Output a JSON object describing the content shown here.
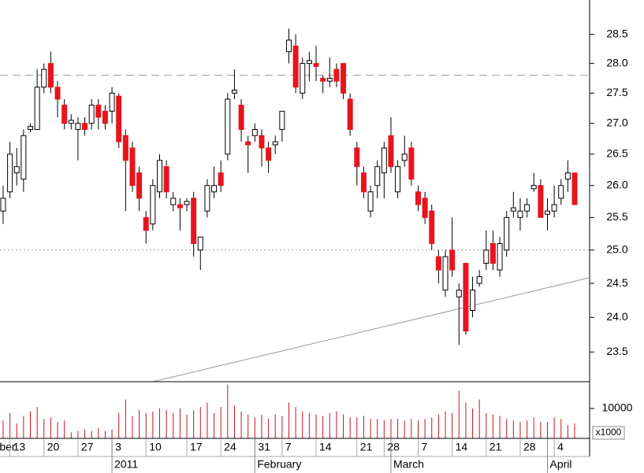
{
  "chart_data": {
    "type": "candlestick",
    "log_scale": true,
    "up_color": "#ffffff",
    "down_color": "#e8141c",
    "volume_color": "#c8141c",
    "open": [
      25.6,
      25.9,
      26.2,
      26.1,
      26.9,
      26.9,
      27.6,
      28.0,
      27.6,
      27.3,
      27.0,
      26.9,
      27.0,
      27.0,
      27.3,
      27.2,
      27.2,
      27.45,
      26.8,
      26.6,
      26.2,
      25.5,
      25.4,
      25.9,
      26.3,
      25.7,
      25.7,
      25.7,
      25.8,
      25.0,
      25.6,
      25.9,
      26.2,
      26.5,
      27.5,
      27.3,
      26.7,
      26.8,
      26.8,
      26.6,
      26.65,
      26.9,
      28.2,
      28.3,
      27.5,
      28.0,
      28.0,
      27.75,
      27.7,
      27.9,
      28.0,
      27.4,
      26.6,
      26.2,
      25.6,
      26.0,
      26.2,
      26.8,
      25.9,
      26.4,
      26.6,
      25.9,
      25.8,
      25.6,
      24.9,
      24.4,
      25.0,
      24.3,
      24.8,
      24.1,
      24.5,
      24.8,
      25.1,
      24.7,
      25.0,
      25.6,
      25.5,
      25.6,
      25.95,
      26.0,
      25.55,
      25.6,
      25.8,
      26.1,
      26.2
    ],
    "high": [
      26.0,
      26.7,
      26.6,
      26.9,
      27.0,
      27.9,
      28.0,
      28.2,
      27.7,
      27.4,
      27.15,
      27.1,
      27.1,
      27.4,
      27.4,
      27.3,
      27.6,
      27.5,
      26.9,
      26.7,
      26.3,
      25.6,
      26.1,
      26.5,
      26.4,
      25.9,
      25.8,
      25.8,
      25.9,
      25.2,
      26.1,
      26.3,
      26.4,
      27.5,
      27.9,
      27.4,
      26.8,
      27.0,
      26.9,
      26.7,
      26.8,
      27.2,
      28.6,
      28.5,
      28.1,
      28.2,
      28.3,
      27.8,
      28.1,
      28.0,
      28.0,
      27.5,
      26.7,
      26.3,
      26.0,
      26.4,
      26.7,
      27.1,
      26.4,
      26.8,
      26.7,
      26.0,
      25.9,
      25.7,
      25.0,
      25.0,
      25.5,
      24.5,
      24.8,
      24.6,
      24.7,
      25.3,
      25.3,
      25.2,
      25.6,
      25.9,
      25.8,
      25.8,
      26.2,
      26.1,
      25.8,
      26.0,
      26.1,
      26.4,
      26.2
    ],
    "low": [
      25.4,
      25.8,
      26.0,
      25.9,
      26.85,
      26.9,
      27.5,
      27.5,
      27.1,
      26.9,
      26.9,
      26.4,
      26.8,
      26.9,
      26.9,
      26.9,
      27.0,
      26.6,
      25.6,
      25.9,
      25.6,
      25.1,
      25.3,
      25.8,
      25.8,
      25.6,
      25.3,
      25.6,
      24.9,
      24.7,
      25.5,
      25.8,
      25.9,
      26.4,
      27.4,
      26.7,
      26.2,
      26.7,
      26.3,
      26.2,
      26.5,
      26.7,
      28.0,
      27.5,
      27.4,
      27.7,
      27.7,
      27.5,
      27.6,
      27.6,
      27.4,
      26.8,
      26.0,
      25.8,
      25.5,
      25.8,
      25.8,
      26.2,
      25.8,
      26.3,
      26.0,
      25.6,
      25.4,
      25.0,
      24.5,
      24.3,
      24.6,
      23.6,
      23.75,
      24.0,
      24.45,
      24.7,
      24.7,
      24.6,
      24.9,
      25.5,
      25.3,
      25.5,
      25.9,
      25.5,
      25.3,
      25.5,
      25.7,
      25.9,
      25.7
    ],
    "close": [
      25.8,
      26.5,
      26.3,
      26.8,
      26.95,
      27.6,
      27.9,
      27.6,
      27.4,
      27.0,
      27.05,
      27.0,
      26.9,
      27.3,
      27.1,
      27.0,
      27.5,
      26.7,
      26.4,
      26.0,
      25.8,
      25.3,
      26.0,
      26.4,
      25.9,
      25.8,
      25.65,
      25.75,
      25.1,
      25.2,
      26.0,
      26.0,
      26.0,
      27.4,
      27.55,
      26.9,
      26.65,
      26.9,
      26.6,
      26.4,
      26.7,
      27.2,
      28.4,
      27.6,
      28.0,
      28.05,
      27.95,
      27.7,
      27.75,
      27.7,
      27.5,
      26.9,
      26.3,
      25.9,
      25.9,
      26.3,
      26.6,
      26.3,
      26.3,
      26.5,
      26.1,
      25.7,
      25.5,
      25.1,
      24.7,
      24.9,
      24.7,
      24.4,
      23.8,
      24.4,
      24.6,
      25.0,
      24.8,
      25.1,
      25.5,
      25.65,
      25.6,
      25.7,
      26.0,
      25.5,
      25.6,
      25.7,
      26.0,
      26.2,
      25.7
    ],
    "volume": [
      6000,
      8500,
      5000,
      7500,
      9000,
      10500,
      6500,
      7000,
      5500,
      6000,
      2000,
      2500,
      3000,
      2500,
      3500,
      2500,
      3000,
      8500,
      13000,
      7500,
      9500,
      8500,
      9000,
      10000,
      9500,
      8500,
      10000,
      8000,
      9500,
      10500,
      12000,
      8500,
      10500,
      18000,
      11000,
      9000,
      8000,
      7000,
      8000,
      6500,
      8000,
      7500,
      12000,
      10500,
      9000,
      8500,
      8000,
      7500,
      8500,
      9000,
      8000,
      7000,
      7000,
      7500,
      6500,
      6500,
      6000,
      6500,
      6500,
      6000,
      6500,
      6000,
      6500,
      7000,
      8000,
      9000,
      8500,
      16000,
      12000,
      10000,
      13000,
      8500,
      8000,
      7500,
      6500,
      6000,
      5500,
      6000,
      7000,
      5500,
      5500,
      7000,
      6500,
      4500,
      5000
    ],
    "xlim": [
      -0.46,
      86.2
    ],
    "ylim": [
      23.08,
      29.1
    ],
    "yticks": [
      {
        "value": 23.5,
        "label": "23.5"
      },
      {
        "value": 24,
        "label": "24.0"
      },
      {
        "value": 24.5,
        "label": "24.5"
      },
      {
        "value": 25,
        "label": "25.0"
      },
      {
        "value": 25.5,
        "label": "25.5"
      },
      {
        "value": 26,
        "label": "26.0"
      },
      {
        "value": 26.5,
        "label": "26.5"
      },
      {
        "value": 27,
        "label": "27.0"
      },
      {
        "value": 27.5,
        "label": "27.5"
      },
      {
        "value": 28,
        "label": "28.0"
      },
      {
        "value": 28.5,
        "label": "28.5"
      }
    ],
    "vlim": [
      0,
      18950
    ],
    "vticks": [
      10000
    ],
    "volume_unit": "x1000",
    "xticks": [
      {
        "value": -1,
        "label": "ber"
      },
      {
        "value": 1,
        "label": "13"
      },
      {
        "value": 6,
        "label": "20"
      },
      {
        "value": 11,
        "label": "27"
      },
      {
        "value": 16,
        "label": "3"
      },
      {
        "value": 21,
        "label": "10"
      },
      {
        "value": 27,
        "label": "17"
      },
      {
        "value": 32,
        "label": "24"
      },
      {
        "value": 37,
        "label": "31"
      },
      {
        "value": 41,
        "label": "7"
      },
      {
        "value": 46,
        "label": "14"
      },
      {
        "value": 52,
        "label": "21"
      },
      {
        "value": 56,
        "label": "28"
      },
      {
        "value": 61,
        "label": "7"
      },
      {
        "value": 66,
        "label": "14"
      },
      {
        "value": 71,
        "label": "21"
      },
      {
        "value": 76,
        "label": "28"
      },
      {
        "value": 81,
        "label": "4"
      }
    ],
    "month_ticks": [
      {
        "value": 16,
        "label": "2011"
      },
      {
        "value": 37,
        "label": "February"
      },
      {
        "value": 57,
        "label": "March"
      },
      {
        "value": 80,
        "label": "April"
      }
    ],
    "hlines": [
      {
        "value": 27.8,
        "style": "dashed"
      },
      {
        "value": 25.0,
        "style": "dotted"
      }
    ],
    "trendline": {
      "x": [
        22,
        86
      ],
      "y": [
        23.08,
        24.58
      ]
    }
  }
}
